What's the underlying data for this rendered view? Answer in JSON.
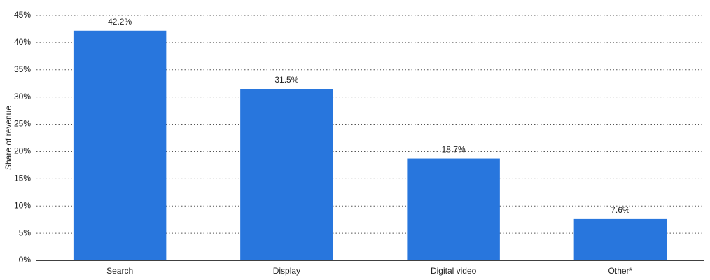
{
  "chart_data": {
    "type": "bar",
    "y_label": "Share of revenue",
    "categories": [
      "Search",
      "Display",
      "Digital video",
      "Other*"
    ],
    "values": [
      42.2,
      31.5,
      18.7,
      7.6
    ],
    "value_labels": [
      "42.2%",
      "31.5%",
      "18.7%",
      "7.6%"
    ],
    "color": "#2876dd",
    "ylim": [
      0,
      45
    ],
    "yticks": [
      {
        "value": 0,
        "label": "0%"
      },
      {
        "value": 5,
        "label": "5%"
      },
      {
        "value": 10,
        "label": "10%"
      },
      {
        "value": 15,
        "label": "15%"
      },
      {
        "value": 20,
        "label": "20%"
      },
      {
        "value": 25,
        "label": "25%"
      },
      {
        "value": 30,
        "label": "30%"
      },
      {
        "value": 35,
        "label": "35%"
      },
      {
        "value": 40,
        "label": "40%"
      },
      {
        "value": 45,
        "label": "45%"
      }
    ],
    "grid": true
  }
}
